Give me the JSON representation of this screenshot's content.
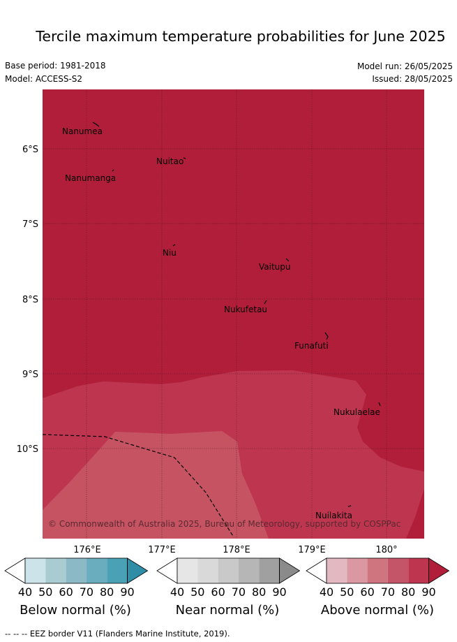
{
  "header": {
    "title": "Tercile maximum temperature probabilities for June 2025",
    "base_period": "Base period: 1981-2018",
    "model": "Model: ACCESS-S2",
    "model_run": "Model run: 26/05/2025",
    "issued": "Issued: 28/05/2025"
  },
  "map": {
    "lat_labels": [
      "6°S",
      "7°S",
      "8°S",
      "9°S",
      "10°S"
    ],
    "lon_labels": [
      "176°E",
      "177°E",
      "178°E",
      "179°E",
      "180°"
    ],
    "copyright": "© Commonwealth of Australia 2025, Bureau of Meteorology, supported by COSPPac",
    "islands": [
      "Nanumea",
      "Nuitao",
      "Nanumanga",
      "Niu",
      "Vaitupu",
      "Nukufetau",
      "Funafuti",
      "Nukulaelae",
      "Nuilakita"
    ],
    "colors": {
      "above_90": "#b01e3a",
      "above_80": "#be3550",
      "above_70": "#c65362"
    }
  },
  "colorbars": [
    {
      "label": "Below normal (%)",
      "ticks": [
        "40",
        "50",
        "60",
        "70",
        "80",
        "90"
      ],
      "colors": [
        "#ffffff",
        "#cde3ea",
        "#a9cbd2",
        "#8bb9c6",
        "#6aadbe",
        "#4aa0b4",
        "#2f8da5"
      ]
    },
    {
      "label": "Near normal (%)",
      "ticks": [
        "40",
        "50",
        "60",
        "70",
        "80",
        "90"
      ],
      "colors": [
        "#ffffff",
        "#e6e6e6",
        "#d9d9d9",
        "#c9c9c9",
        "#b6b6b6",
        "#a0a0a0",
        "#8a8a8a"
      ]
    },
    {
      "label": "Above normal (%)",
      "ticks": [
        "40",
        "50",
        "60",
        "70",
        "80",
        "90"
      ],
      "colors": [
        "#ffffff",
        "#e3b8c0",
        "#d998a2",
        "#cf7580",
        "#c45468",
        "#be3550",
        "#b01e3a"
      ]
    }
  ],
  "footer": "--  --  -- EEZ border V11 (Flanders Marine Institute, 2019)."
}
